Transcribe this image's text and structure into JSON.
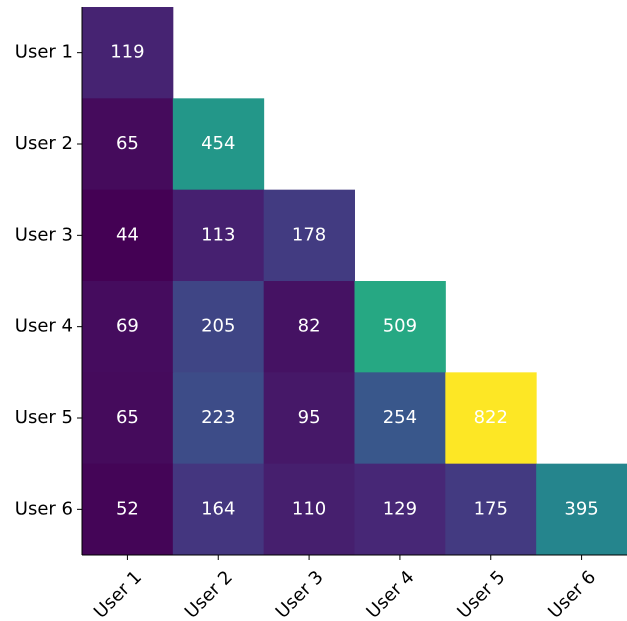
{
  "chart_data": {
    "type": "heatmap",
    "colormap": "viridis",
    "rows": [
      "User 1",
      "User 2",
      "User 3",
      "User 4",
      "User 5",
      "User 6"
    ],
    "columns": [
      "User 1",
      "User 2",
      "User 3",
      "User 4",
      "User 5",
      "User 6"
    ],
    "values": [
      [
        119,
        null,
        null,
        null,
        null,
        null
      ],
      [
        65,
        454,
        null,
        null,
        null,
        null
      ],
      [
        44,
        113,
        178,
        null,
        null,
        null
      ],
      [
        69,
        205,
        82,
        509,
        null,
        null
      ],
      [
        65,
        223,
        95,
        254,
        822,
        null
      ],
      [
        52,
        164,
        110,
        129,
        175,
        395
      ]
    ]
  }
}
